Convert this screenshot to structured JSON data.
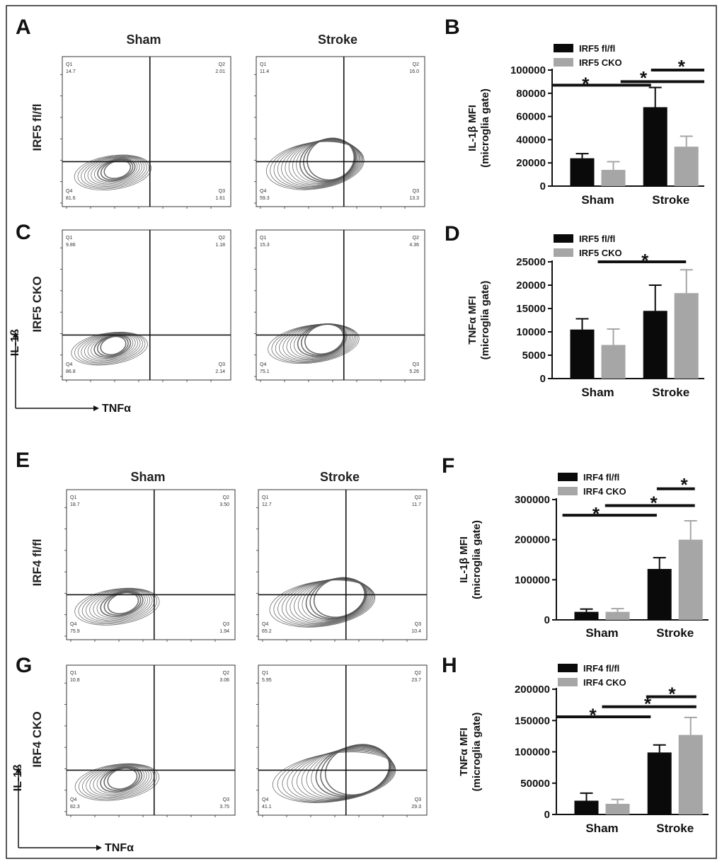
{
  "colors": {
    "fl": "#0a0a0a",
    "cko": "#a6a6a6",
    "axis": "#111111",
    "contour": "#555555",
    "frame": "#222222"
  },
  "flow": {
    "col_titles": [
      "Sham",
      "Stroke"
    ],
    "axis_x": "TNFα",
    "axis_y": "IL-1ß",
    "panels": [
      {
        "letter": "A",
        "row_label": "IRF5 fl/fl",
        "show_titles": true,
        "plots": [
          {
            "q1": "14.7",
            "q2": "2.01",
            "q3": "1.61",
            "q4": "81.6"
          },
          {
            "q1": "11.4",
            "q2": "16.0",
            "q3": "13.3",
            "q4": "59.3"
          }
        ]
      },
      {
        "letter": "C",
        "row_label": "IRF5 CKO",
        "show_titles": false,
        "plots": [
          {
            "q1": "9.86",
            "q2": "1.18",
            "q3": "2.14",
            "q4": "86.8"
          },
          {
            "q1": "15.3",
            "q2": "4.36",
            "q3": "5.26",
            "q4": "75.1"
          }
        ]
      },
      {
        "letter": "E",
        "row_label": "IRF4 fl/fl",
        "show_titles": true,
        "plots": [
          {
            "q1": "18.7",
            "q2": "3.50",
            "q3": "1.94",
            "q4": "75.9"
          },
          {
            "q1": "12.7",
            "q2": "11.7",
            "q3": "10.4",
            "q4": "65.2"
          }
        ]
      },
      {
        "letter": "G",
        "row_label": "IRF4 CKO",
        "show_titles": false,
        "plots": [
          {
            "q1": "10.8",
            "q2": "3.06",
            "q3": "3.75",
            "q4": "82.3"
          },
          {
            "q1": "5.95",
            "q2": "23.7",
            "q3": "29.3",
            "q4": "41.1"
          }
        ]
      }
    ]
  },
  "chart_data": [
    {
      "letter": "B",
      "type": "bar",
      "categories": [
        "Sham",
        "Stroke"
      ],
      "ylabel": [
        "IL-1β MFI",
        "(microglia gate)"
      ],
      "ylim": [
        0,
        100000
      ],
      "yticks": [
        "0",
        "20000",
        "40000",
        "60000",
        "80000",
        "100000"
      ],
      "series": [
        {
          "name": "IRF5 fl/fl",
          "values": [
            24000,
            68000
          ],
          "errors": [
            4000,
            17000
          ]
        },
        {
          "name": "IRF5 CKO",
          "values": [
            14000,
            34000
          ],
          "errors": [
            7000,
            9000
          ]
        }
      ],
      "annotations": [
        "*",
        "*",
        "*"
      ]
    },
    {
      "letter": "D",
      "type": "bar",
      "categories": [
        "Sham",
        "Stroke"
      ],
      "ylabel": [
        "TNFα MFI",
        "(microglia gate)"
      ],
      "ylim": [
        0,
        25000
      ],
      "yticks": [
        "0",
        "5000",
        "10000",
        "15000",
        "20000",
        "25000"
      ],
      "series": [
        {
          "name": "IRF5 fl/fl",
          "values": [
            10500,
            14500
          ],
          "errors": [
            2300,
            5500
          ]
        },
        {
          "name": "IRF5 CKO",
          "values": [
            7200,
            18300
          ],
          "errors": [
            3400,
            5000
          ]
        }
      ],
      "annotations": [
        "*"
      ]
    },
    {
      "letter": "F",
      "type": "bar",
      "categories": [
        "Sham",
        "Stroke"
      ],
      "ylabel": [
        "IL-1β MFI",
        "(microglia gate)"
      ],
      "ylim": [
        0,
        300000
      ],
      "yticks": [
        "0",
        "100000",
        "200000",
        "300000"
      ],
      "series": [
        {
          "name": "IRF4 fl/fl",
          "values": [
            20000,
            127000
          ],
          "errors": [
            7000,
            28000
          ]
        },
        {
          "name": "IRF4 CKO",
          "values": [
            20000,
            200000
          ],
          "errors": [
            8000,
            47000
          ]
        }
      ],
      "annotations": [
        "*",
        "*",
        "*"
      ]
    },
    {
      "letter": "H",
      "type": "bar",
      "categories": [
        "Sham",
        "Stroke"
      ],
      "ylabel": [
        "TNFα MFI",
        "(microglia gate)"
      ],
      "ylim": [
        0,
        200000
      ],
      "yticks": [
        "0",
        "50000",
        "100000",
        "150000",
        "200000"
      ],
      "series": [
        {
          "name": "IRF4 fl/fl",
          "values": [
            22000,
            99000
          ],
          "errors": [
            12000,
            12000
          ]
        },
        {
          "name": "IRF4 CKO",
          "values": [
            17000,
            127000
          ],
          "errors": [
            7000,
            28000
          ]
        }
      ],
      "annotations": [
        "*",
        "*",
        "*"
      ]
    }
  ]
}
